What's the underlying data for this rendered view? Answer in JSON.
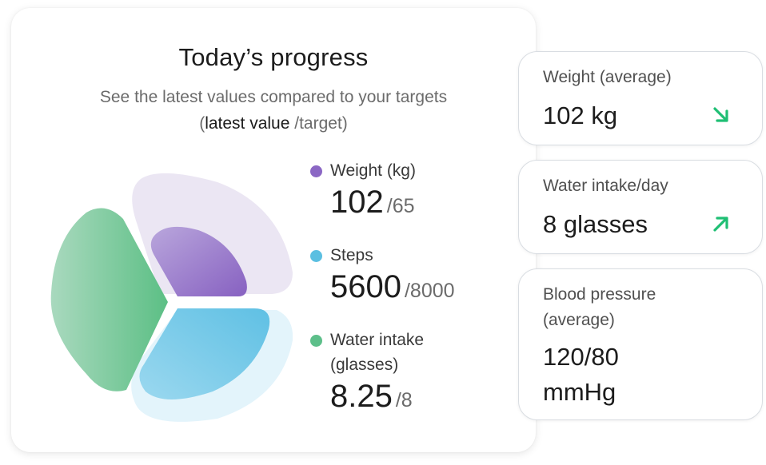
{
  "progress": {
    "title": "Today’s progress",
    "subtitle_line1": "See the latest values compared to your targets",
    "subtitle_paren_open": "(",
    "subtitle_bold": "latest value",
    "subtitle_rest": " /target)",
    "metrics": [
      {
        "label": "Weight (kg)",
        "value": "102",
        "target": "/65",
        "color": "#8b67c4"
      },
      {
        "label": "Steps",
        "value": "5600",
        "target": "/8000",
        "color": "#5bbfe1"
      },
      {
        "label_line1": "Water intake",
        "label_line2": "(glasses)",
        "value": "8.25",
        "target": "/8",
        "color": "#5dbf8a"
      }
    ]
  },
  "cards": [
    {
      "label": "Weight (average)",
      "value": "102 kg",
      "trend_icon": "arrow-down-right-icon",
      "trend_color": "#1fbf74"
    },
    {
      "label": "Water intake/day",
      "value": "8 glasses",
      "trend_icon": "arrow-up-right-icon",
      "trend_color": "#1fbf74"
    },
    {
      "label_line1": "Blood pressure",
      "label_line2": "(average)",
      "value_line1": "120/80",
      "value_line2": "mmHg"
    }
  ]
}
